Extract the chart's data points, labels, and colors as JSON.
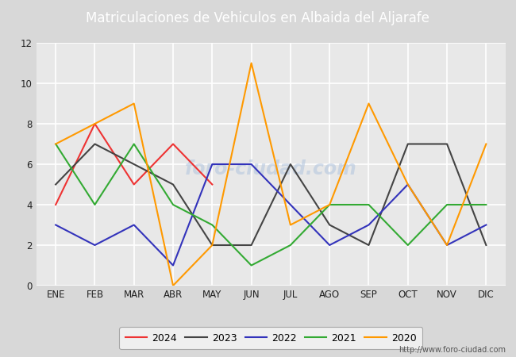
{
  "title": "Matriculaciones de Vehiculos en Albaida del Aljarafe",
  "title_bg_color": "#4a7abf",
  "title_text_color": "#ffffff",
  "months": [
    "ENE",
    "FEB",
    "MAR",
    "ABR",
    "MAY",
    "JUN",
    "JUL",
    "AGO",
    "SEP",
    "OCT",
    "NOV",
    "DIC"
  ],
  "series": {
    "2024": {
      "color": "#ee3333",
      "data": [
        4,
        8,
        5,
        7,
        5,
        null,
        null,
        null,
        null,
        null,
        null,
        null
      ]
    },
    "2023": {
      "color": "#444444",
      "data": [
        5,
        7,
        6,
        5,
        2,
        2,
        6,
        3,
        2,
        7,
        7,
        2
      ]
    },
    "2022": {
      "color": "#3333bb",
      "data": [
        3,
        2,
        3,
        1,
        6,
        6,
        4,
        2,
        3,
        5,
        2,
        3
      ]
    },
    "2021": {
      "color": "#33aa33",
      "data": [
        7,
        4,
        7,
        4,
        3,
        1,
        2,
        4,
        4,
        2,
        4,
        4
      ]
    },
    "2020": {
      "color": "#ff9900",
      "data": [
        7,
        8,
        9,
        0,
        2,
        11,
        3,
        4,
        9,
        5,
        2,
        7
      ]
    }
  },
  "ylim": [
    0,
    12
  ],
  "yticks": [
    0,
    2,
    4,
    6,
    8,
    10,
    12
  ],
  "outer_bg_color": "#d8d8d8",
  "plot_bg_color": "#e8e8e8",
  "grid_color": "#ffffff",
  "url": "http://www.foro-ciudad.com",
  "legend_border_color": "#999999",
  "watermark_color": "#b0c4de",
  "watermark_text": "foro-ciudad.com",
  "year_order": [
    "2024",
    "2023",
    "2022",
    "2021",
    "2020"
  ]
}
